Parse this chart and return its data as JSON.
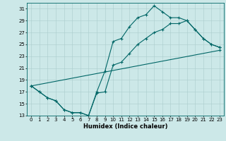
{
  "xlabel": "Humidex (Indice chaleur)",
  "bg_color": "#cce8e8",
  "grid_color": "#aacccc",
  "line_color": "#006666",
  "xlim": [
    -0.5,
    23.5
  ],
  "ylim": [
    13,
    32
  ],
  "xticks": [
    0,
    1,
    2,
    3,
    4,
    5,
    6,
    7,
    8,
    9,
    10,
    11,
    12,
    13,
    14,
    15,
    16,
    17,
    18,
    19,
    20,
    21,
    22,
    23
  ],
  "yticks": [
    13,
    15,
    17,
    19,
    21,
    23,
    25,
    27,
    29,
    31
  ],
  "line1_x": [
    0,
    1,
    2,
    3,
    4,
    5,
    6,
    7,
    8,
    9,
    10,
    11,
    12,
    13,
    14,
    15,
    16,
    17,
    18,
    19,
    20,
    21,
    22,
    23
  ],
  "line1_y": [
    18,
    17,
    16,
    15.5,
    14,
    13.5,
    13.5,
    13,
    17,
    20.5,
    25.5,
    26,
    28,
    29.5,
    30,
    31.5,
    30.5,
    29.5,
    29.5,
    29,
    27.5,
    26,
    25,
    24.5
  ],
  "line2_x": [
    0,
    1,
    2,
    3,
    4,
    5,
    6,
    7,
    8,
    9,
    10,
    11,
    12,
    13,
    14,
    15,
    16,
    17,
    18,
    19,
    20,
    21,
    22,
    23
  ],
  "line2_y": [
    18,
    17,
    16,
    15.5,
    14,
    13.5,
    13.5,
    13,
    16.8,
    17.0,
    21.5,
    22,
    23.5,
    25,
    26,
    27,
    27.5,
    28.5,
    28.5,
    29,
    27.5,
    26,
    25,
    24.5
  ],
  "line3_x": [
    0,
    23
  ],
  "line3_y": [
    18,
    24
  ],
  "xlabel_fontsize": 6.0,
  "tick_fontsize": 5.0,
  "lw": 0.8,
  "ms": 1.8
}
